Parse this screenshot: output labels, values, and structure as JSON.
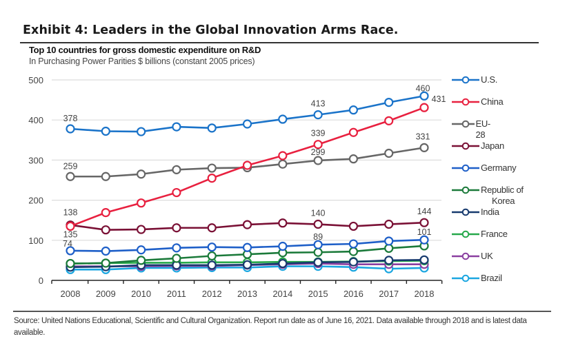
{
  "header": {
    "exhibit_title": "Exhibit 4: Leaders in the Global Innovation Arms Race.",
    "chart_title": "Top 10 countries for gross domestic expenditure on R&D",
    "chart_subtitle": "In Purchasing Power Parities $ billions (constant 2005 prices)"
  },
  "footer": {
    "source": "Source: United Nations Educational, Scientific and Cultural Organization. Report run date as of June 16, 2021. Data available through 2018 and is latest data available."
  },
  "chart_data": {
    "type": "line",
    "title": "Top 10 countries for gross domestic expenditure on R&D",
    "subtitle": "In Purchasing Power Parities $ billions (constant 2005 prices)",
    "xlabel": "",
    "ylabel": "",
    "x": [
      "2008",
      "2009",
      "2010",
      "2011",
      "2012",
      "2013",
      "2014",
      "2015",
      "2016",
      "2017",
      "2018"
    ],
    "ylim": [
      0,
      500
    ],
    "yticks": [
      "0",
      "100",
      "200",
      "300",
      "400",
      "500"
    ],
    "grid": true,
    "legend_position": "right",
    "marker": "open-circle",
    "series": [
      {
        "name": "U.S.",
        "color": "#1a73c9",
        "values": [
          378,
          372,
          371,
          383,
          380,
          390,
          402,
          413,
          425,
          444,
          460
        ],
        "labels": {
          "0": "378",
          "7": "413",
          "10": "460"
        }
      },
      {
        "name": "China",
        "color": "#e8203f",
        "values": [
          135,
          169,
          193,
          219,
          255,
          287,
          311,
          339,
          369,
          398,
          431
        ],
        "labels": {
          "0": "135",
          "7": "339",
          "10": "431"
        }
      },
      {
        "name": "EU-28",
        "color": "#666666",
        "values": [
          259,
          259,
          265,
          276,
          280,
          281,
          290,
          299,
          303,
          317,
          331
        ],
        "labels": {
          "0": "259",
          "7": "299",
          "10": "331"
        }
      },
      {
        "name": "Japan",
        "color": "#7a1035",
        "values": [
          138,
          126,
          127,
          131,
          131,
          139,
          143,
          140,
          135,
          140,
          144
        ],
        "labels": {
          "0": "138",
          "7": "140",
          "10": "144"
        }
      },
      {
        "name": "Germany",
        "color": "#1e5fc8",
        "values": [
          74,
          73,
          76,
          81,
          83,
          82,
          85,
          89,
          91,
          98,
          101
        ],
        "labels": {
          "0": "74",
          "7": "89",
          "10": "101"
        }
      },
      {
        "name": "Republic of Korea",
        "color": "#1b7a3a",
        "values": [
          42,
          43,
          50,
          55,
          61,
          65,
          69,
          70,
          72,
          80,
          86
        ],
        "labels": {}
      },
      {
        "name": "India",
        "color": "#173a6e",
        "values": [
          33,
          34,
          38,
          38,
          38,
          39,
          42,
          45,
          46,
          50,
          51
        ],
        "labels": {}
      },
      {
        "name": "France",
        "color": "#26a84a",
        "values": [
          42,
          43,
          44,
          44,
          45,
          45,
          46,
          46,
          47,
          48,
          49
        ],
        "labels": {}
      },
      {
        "name": "UK",
        "color": "#8a3fa0",
        "values": [
          35,
          35,
          35,
          36,
          36,
          38,
          40,
          42,
          40,
          40,
          40
        ],
        "labels": {}
      },
      {
        "name": "Brazil",
        "color": "#1aa6e0",
        "values": [
          27,
          27,
          31,
          31,
          32,
          32,
          35,
          35,
          33,
          29,
          31
        ],
        "labels": {}
      }
    ]
  }
}
